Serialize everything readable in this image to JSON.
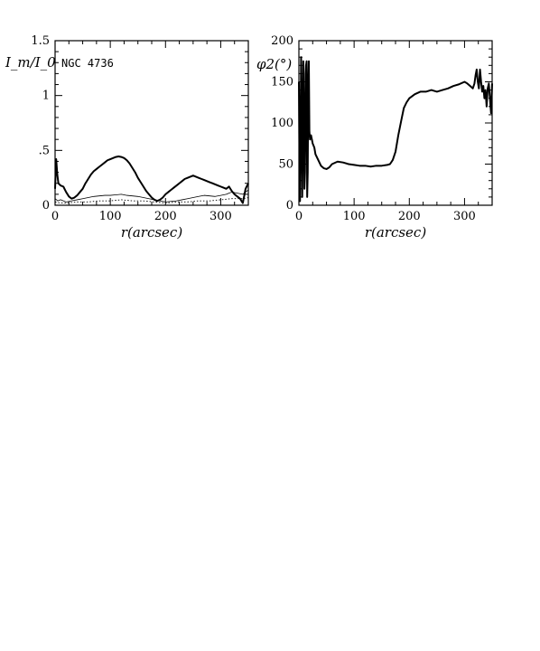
{
  "chart_data": [
    {
      "type": "line",
      "panel_label": "NGC 4736",
      "xlabel": "r(arcsec)",
      "ylabel": "I_m/I_0",
      "xlim": [
        0,
        350
      ],
      "ylim": [
        0,
        1.5
      ],
      "x_ticks": [
        0,
        100,
        200,
        300
      ],
      "x_tick_labels": [
        "0",
        "100",
        "200",
        "300"
      ],
      "y_ticks": [
        0,
        0.5,
        1.0,
        1.5
      ],
      "y_tick_labels": [
        "0",
        ".5",
        "1",
        "1.5"
      ],
      "series": [
        {
          "style": "thick",
          "x": [
            0,
            2,
            4,
            6,
            10,
            15,
            20,
            25,
            30,
            35,
            40,
            45,
            50,
            55,
            60,
            65,
            70,
            75,
            80,
            85,
            90,
            95,
            100,
            105,
            110,
            115,
            120,
            125,
            130,
            135,
            140,
            145,
            150,
            155,
            160,
            165,
            170,
            175,
            180,
            185,
            190,
            195,
            200,
            205,
            210,
            215,
            220,
            225,
            230,
            235,
            240,
            245,
            250,
            255,
            260,
            265,
            270,
            275,
            280,
            285,
            290,
            295,
            300,
            305,
            310,
            315,
            320,
            325,
            330,
            335,
            340,
            345,
            350
          ],
          "values": [
            0.15,
            0.42,
            0.28,
            0.2,
            0.18,
            0.17,
            0.12,
            0.08,
            0.06,
            0.07,
            0.09,
            0.12,
            0.15,
            0.2,
            0.24,
            0.28,
            0.31,
            0.33,
            0.35,
            0.37,
            0.39,
            0.41,
            0.42,
            0.43,
            0.44,
            0.445,
            0.44,
            0.43,
            0.41,
            0.38,
            0.34,
            0.3,
            0.25,
            0.21,
            0.17,
            0.13,
            0.1,
            0.07,
            0.05,
            0.04,
            0.05,
            0.07,
            0.1,
            0.12,
            0.14,
            0.16,
            0.18,
            0.2,
            0.22,
            0.24,
            0.25,
            0.26,
            0.27,
            0.26,
            0.25,
            0.24,
            0.23,
            0.22,
            0.21,
            0.2,
            0.19,
            0.18,
            0.17,
            0.16,
            0.15,
            0.17,
            0.13,
            0.1,
            0.08,
            0.06,
            0.02,
            0.15,
            0.2
          ]
        },
        {
          "style": "thin",
          "x": [
            0,
            5,
            10,
            20,
            30,
            40,
            50,
            60,
            70,
            80,
            90,
            100,
            110,
            120,
            130,
            140,
            150,
            160,
            170,
            180,
            190,
            200,
            210,
            220,
            230,
            240,
            250,
            260,
            270,
            280,
            290,
            300,
            310,
            320,
            330,
            340,
            350
          ],
          "values": [
            0.06,
            0.04,
            0.05,
            0.03,
            0.04,
            0.05,
            0.06,
            0.07,
            0.08,
            0.085,
            0.09,
            0.09,
            0.095,
            0.1,
            0.09,
            0.085,
            0.08,
            0.07,
            0.06,
            0.05,
            0.04,
            0.03,
            0.035,
            0.04,
            0.05,
            0.06,
            0.07,
            0.08,
            0.09,
            0.085,
            0.08,
            0.09,
            0.1,
            0.12,
            0.11,
            0.1,
            0.14
          ]
        },
        {
          "style": "dotted",
          "x": [
            0,
            10,
            20,
            40,
            60,
            80,
            100,
            120,
            140,
            160,
            180,
            200,
            220,
            240,
            260,
            280,
            300,
            320,
            340,
            350
          ],
          "values": [
            0.03,
            0.02,
            0.02,
            0.03,
            0.03,
            0.04,
            0.04,
            0.05,
            0.04,
            0.04,
            0.03,
            0.02,
            0.03,
            0.03,
            0.04,
            0.04,
            0.05,
            0.06,
            0.06,
            0.07
          ]
        }
      ]
    },
    {
      "type": "line",
      "xlabel": "r(arcsec)",
      "ylabel": "φ2(°)",
      "xlim": [
        0,
        350
      ],
      "ylim": [
        0,
        200
      ],
      "x_ticks": [
        0,
        100,
        200,
        300
      ],
      "x_tick_labels": [
        "0",
        "100",
        "200",
        "300"
      ],
      "y_ticks": [
        0,
        50,
        100,
        150,
        200
      ],
      "y_tick_labels": [
        "0",
        "50",
        "100",
        "150",
        "200"
      ],
      "series": [
        {
          "style": "thick",
          "x": [
            0,
            1,
            2,
            3,
            4,
            5,
            6,
            7,
            8,
            9,
            10,
            11,
            12,
            13,
            14,
            15,
            16,
            17,
            18,
            19,
            20,
            22,
            25,
            28,
            30,
            35,
            40,
            45,
            50,
            55,
            60,
            70,
            80,
            90,
            100,
            110,
            120,
            130,
            140,
            150,
            160,
            165,
            170,
            175,
            180,
            183,
            186,
            190,
            195,
            200,
            210,
            220,
            230,
            240,
            250,
            260,
            270,
            280,
            290,
            300,
            305,
            310,
            315,
            318,
            320,
            322,
            324,
            326,
            328,
            330,
            332,
            334,
            336,
            338,
            340,
            342,
            344,
            346,
            348,
            350
          ],
          "values": [
            150,
            60,
            5,
            90,
            180,
            120,
            10,
            70,
            175,
            160,
            20,
            40,
            110,
            170,
            175,
            10,
            40,
            150,
            175,
            90,
            80,
            85,
            75,
            70,
            62,
            55,
            48,
            45,
            44,
            46,
            50,
            53,
            52,
            50,
            49,
            48,
            48,
            47,
            48,
            48,
            49,
            50,
            55,
            65,
            85,
            95,
            105,
            118,
            125,
            130,
            135,
            138,
            138,
            140,
            138,
            140,
            142,
            145,
            147,
            150,
            148,
            145,
            142,
            148,
            158,
            165,
            150,
            142,
            165,
            150,
            138,
            145,
            130,
            140,
            120,
            142,
            148,
            130,
            112,
            148
          ]
        }
      ]
    }
  ]
}
